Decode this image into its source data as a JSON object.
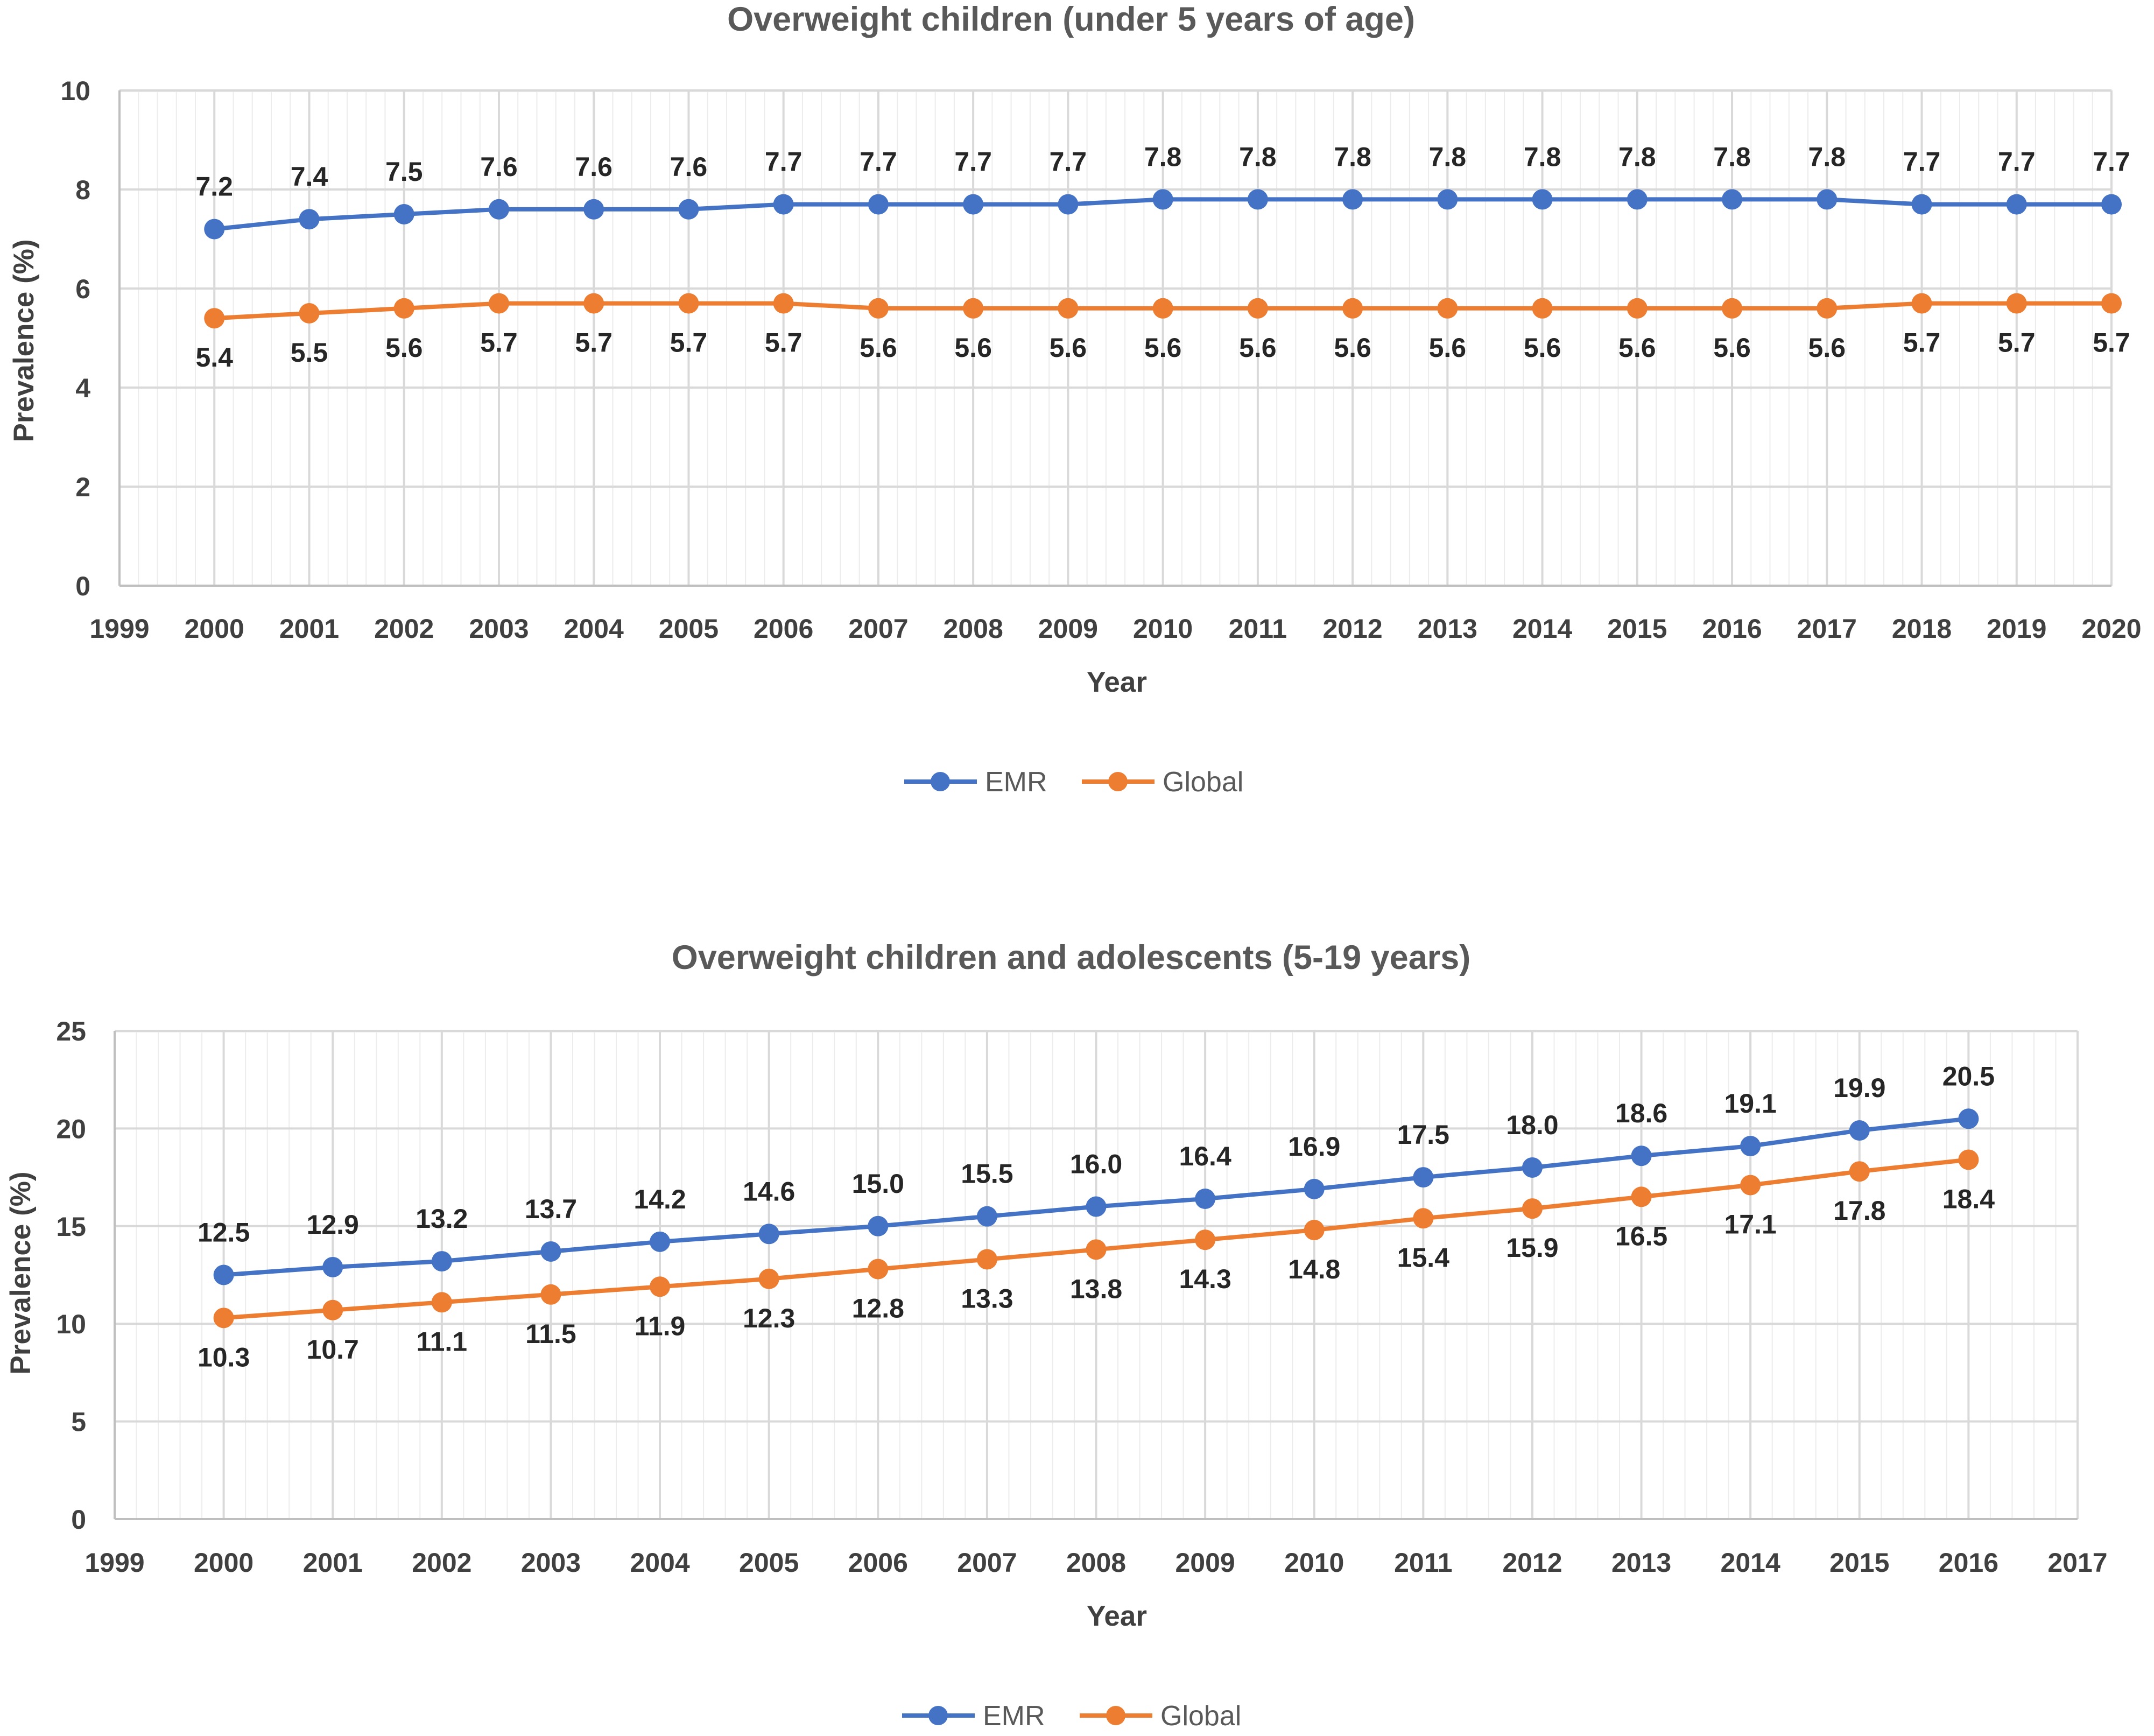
{
  "colors": {
    "emr": "#4472c4",
    "global": "#ed7d31"
  },
  "chart_data": [
    {
      "type": "line",
      "title": "Overweight children (under 5 years of age)",
      "xlabel": "Year",
      "ylabel": "Prevalence (%)",
      "xlim": [
        1999,
        2020
      ],
      "ylim": [
        0,
        10
      ],
      "x_ticks": [
        1999,
        2000,
        2001,
        2002,
        2003,
        2004,
        2005,
        2006,
        2007,
        2008,
        2009,
        2010,
        2011,
        2012,
        2013,
        2014,
        2015,
        2016,
        2017,
        2018,
        2019,
        2020
      ],
      "y_ticks": [
        0,
        2,
        4,
        6,
        8,
        10
      ],
      "grid": true,
      "legend": "bottom",
      "x": [
        2000,
        2001,
        2002,
        2003,
        2004,
        2005,
        2006,
        2007,
        2008,
        2009,
        2010,
        2011,
        2012,
        2013,
        2014,
        2015,
        2016,
        2017,
        2018,
        2019,
        2020
      ],
      "series": [
        {
          "name": "EMR",
          "color": "#4472c4",
          "label_position": "above",
          "values": [
            7.2,
            7.4,
            7.5,
            7.6,
            7.6,
            7.6,
            7.7,
            7.7,
            7.7,
            7.7,
            7.8,
            7.8,
            7.8,
            7.8,
            7.8,
            7.8,
            7.8,
            7.8,
            7.7,
            7.7,
            7.7
          ]
        },
        {
          "name": "Global",
          "color": "#ed7d31",
          "label_position": "below",
          "values": [
            5.4,
            5.5,
            5.6,
            5.7,
            5.7,
            5.7,
            5.7,
            5.6,
            5.6,
            5.6,
            5.6,
            5.6,
            5.6,
            5.6,
            5.6,
            5.6,
            5.6,
            5.6,
            5.7,
            5.7,
            5.7
          ]
        }
      ]
    },
    {
      "type": "line",
      "title": "Overweight children and adolescents (5-19 years)",
      "xlabel": "Year",
      "ylabel": "Prevalence (%)",
      "xlim": [
        1999,
        2017
      ],
      "ylim": [
        0,
        25
      ],
      "x_ticks": [
        1999,
        2000,
        2001,
        2002,
        2003,
        2004,
        2005,
        2006,
        2007,
        2008,
        2009,
        2010,
        2011,
        2012,
        2013,
        2014,
        2015,
        2016,
        2017
      ],
      "y_ticks": [
        0,
        5,
        10,
        15,
        20,
        25
      ],
      "grid": true,
      "legend": "bottom",
      "x": [
        2000,
        2001,
        2002,
        2003,
        2004,
        2005,
        2006,
        2007,
        2008,
        2009,
        2010,
        2011,
        2012,
        2013,
        2014,
        2015,
        2016
      ],
      "series": [
        {
          "name": "EMR",
          "color": "#4472c4",
          "label_position": "above",
          "values": [
            12.5,
            12.9,
            13.2,
            13.7,
            14.2,
            14.6,
            15.0,
            15.5,
            16.0,
            16.4,
            16.9,
            17.5,
            18.0,
            18.6,
            19.1,
            19.9,
            20.5
          ],
          "labels": [
            "12.5",
            "12.9",
            "13.2",
            "13.7",
            "14.2",
            "14.6",
            "15.0",
            "15.5",
            "16.0",
            "16.4",
            "16.9",
            "17.5",
            "18.0",
            "18.6",
            "19.1",
            "19.9",
            "20.5"
          ]
        },
        {
          "name": "Global",
          "color": "#ed7d31",
          "label_position": "below",
          "values": [
            10.3,
            10.7,
            11.1,
            11.5,
            11.9,
            12.3,
            12.8,
            13.3,
            13.8,
            14.3,
            14.8,
            15.4,
            15.9,
            16.5,
            17.1,
            17.8,
            18.4
          ]
        }
      ]
    }
  ]
}
